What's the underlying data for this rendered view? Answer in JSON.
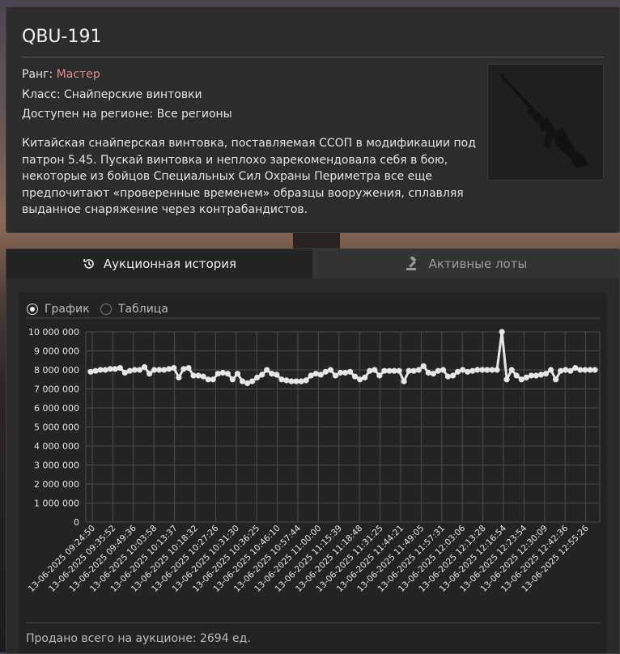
{
  "item": {
    "title": "QBU-191",
    "rank_label": "Ранг: ",
    "rank_value": "Мастер",
    "class_line": "Класс: Снайперские винтовки",
    "region_line": "Доступен на регионе: Все регионы",
    "description": "Китайская снайперская винтовка, поставляемая ССОП в модификации под патрон 5.45. Пускай винтовка и неплохо зарекомендовала себя в бою, некоторые из бойцов Специальных Сил Охраны Периметра все еще предпочитают «проверенные временем» образцы вооружения, сплавляя выданное снаряжение через контрабандистов.",
    "image_icon": "rifle-icon"
  },
  "tabs": [
    {
      "label": "Аукционная история",
      "icon": "history-icon",
      "active": true
    },
    {
      "label": "Активные лоты",
      "icon": "gavel-icon",
      "active": false
    }
  ],
  "view_options": [
    {
      "label": "График",
      "selected": true
    },
    {
      "label": "Таблица",
      "selected": false
    }
  ],
  "footer": {
    "sold_text": "Продано всего на аукционе: 2694 ед."
  },
  "colors": {
    "rank": "#e88a8a",
    "line": "#e6e6e6",
    "grid": "#4a4a4a"
  },
  "chart_data": {
    "type": "line",
    "ylim": [
      0,
      10000000
    ],
    "yticks": [
      "0",
      "1 000 000",
      "2 000 000",
      "3 000 000",
      "4 000 000",
      "5 000 000",
      "6 000 000",
      "7 000 000",
      "8 000 000",
      "9 000 000",
      "10 000 000"
    ],
    "xticks": [
      "13-06-2025 09:24:50",
      "13-06-2025 09:35:52",
      "13-06-2025 09:49:36",
      "13-06-2025 10:03:58",
      "13-06-2025 10:13:37",
      "13-06-2025 10:18:32",
      "13-06-2025 10:27:26",
      "13-06-2025 10:31:30",
      "13-06-2025 10:36:25",
      "13-06-2025 10:46:10",
      "13-06-2025 10:57:44",
      "13-06-2025 11:00:00",
      "13-06-2025 11:15:39",
      "13-06-2025 11:18:48",
      "13-06-2025 11:31:25",
      "13-06-2025 11:44:21",
      "13-06-2025 11:49:05",
      "13-06-2025 11:57:31",
      "13-06-2025 12:03:06",
      "13-06-2025 12:13:28",
      "13-06-2025 12:16:54",
      "13-06-2025 12:23:54",
      "13-06-2025 12:30:09",
      "13-06-2025 12:42:36",
      "13-06-2025 12:55:26"
    ],
    "values": [
      7900000,
      7950000,
      8000000,
      8000000,
      8050000,
      8050000,
      8100000,
      7850000,
      7950000,
      8000000,
      8000000,
      8150000,
      7800000,
      8000000,
      8000000,
      8000000,
      8050000,
      8100000,
      7600000,
      8050000,
      8100000,
      7700000,
      7700000,
      7650000,
      7500000,
      7500000,
      7800000,
      7850000,
      7800000,
      7500000,
      7800000,
      7400000,
      7300000,
      7400000,
      7600000,
      7750000,
      8000000,
      7800000,
      7750000,
      7500000,
      7450000,
      7400000,
      7400000,
      7400000,
      7450000,
      7700000,
      7800000,
      7750000,
      7900000,
      8000000,
      7700000,
      7850000,
      7850000,
      7900000,
      7650000,
      7500000,
      7600000,
      7950000,
      8000000,
      7700000,
      7950000,
      7950000,
      7950000,
      7950000,
      7400000,
      7950000,
      7950000,
      8000000,
      8200000,
      7850000,
      7800000,
      7950000,
      8000000,
      7650000,
      7700000,
      7900000,
      8000000,
      7900000,
      7950000,
      8000000,
      8000000,
      8000000,
      8000000,
      8000000,
      10000000,
      7500000,
      8000000,
      7700000,
      7500000,
      7600000,
      7700000,
      7700000,
      7750000,
      7800000,
      8000000,
      7500000,
      7950000,
      8000000,
      7950000,
      8100000,
      8000000,
      8000000,
      8000000,
      8000000
    ]
  }
}
